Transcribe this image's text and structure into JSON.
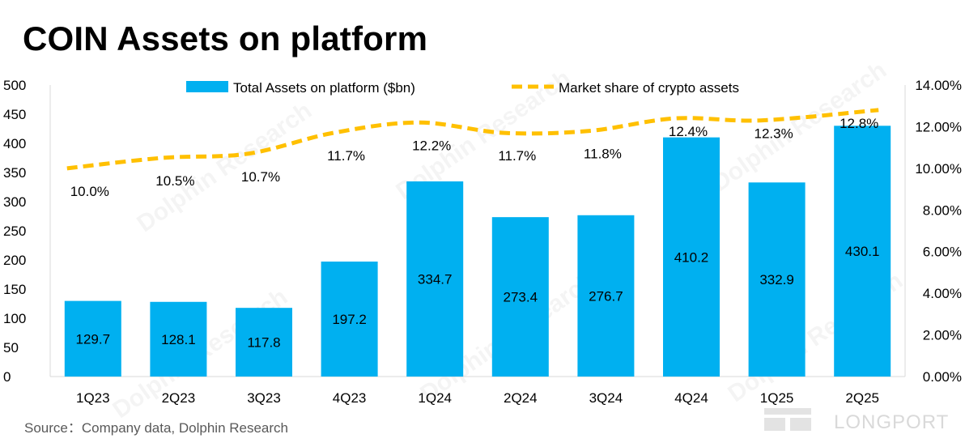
{
  "title": "COIN Assets on platform",
  "source": "Source：Company data, Dolphin Research",
  "watermark": "Dolphin Research",
  "brand": "LONGPORT",
  "colors": {
    "bar": "#00b0f0",
    "line": "#ffc000",
    "axis_text": "#000000",
    "axis_line": "#d9d9d9"
  },
  "chart_data": {
    "type": "bar+line",
    "categories": [
      "1Q23",
      "2Q23",
      "3Q23",
      "4Q23",
      "1Q24",
      "2Q24",
      "3Q24",
      "4Q24",
      "1Q25",
      "2Q25"
    ],
    "series": [
      {
        "name": "Total Assets on platform ($bn)",
        "type": "bar",
        "axis": "left",
        "values": [
          129.7,
          128.1,
          117.8,
          197.2,
          334.7,
          273.4,
          276.7,
          410.2,
          332.9,
          430.1
        ],
        "labels": [
          "129.7",
          "128.1",
          "117.8",
          "197.2",
          "334.7",
          "273.4",
          "276.7",
          "410.2",
          "332.9",
          "430.1"
        ]
      },
      {
        "name": "Market share of crypto assets",
        "type": "line",
        "style": "dashed",
        "axis": "right",
        "values": [
          10.0,
          10.5,
          10.7,
          11.7,
          12.2,
          11.7,
          11.8,
          12.4,
          12.3,
          12.8
        ],
        "labels": [
          "10.0%",
          "10.5%",
          "10.7%",
          "11.7%",
          "12.2%",
          "11.7%",
          "11.8%",
          "12.4%",
          "12.3%",
          "12.8%"
        ]
      }
    ],
    "y_left": {
      "min": 0,
      "max": 500,
      "ticks": [
        "0",
        "50",
        "100",
        "150",
        "200",
        "250",
        "300",
        "350",
        "400",
        "450",
        "500"
      ]
    },
    "y_right": {
      "min": 0,
      "max": 14,
      "ticks": [
        "0.00%",
        "2.00%",
        "4.00%",
        "6.00%",
        "8.00%",
        "10.00%",
        "12.00%",
        "14.00%"
      ]
    },
    "legend_position": "top",
    "grid": false
  }
}
